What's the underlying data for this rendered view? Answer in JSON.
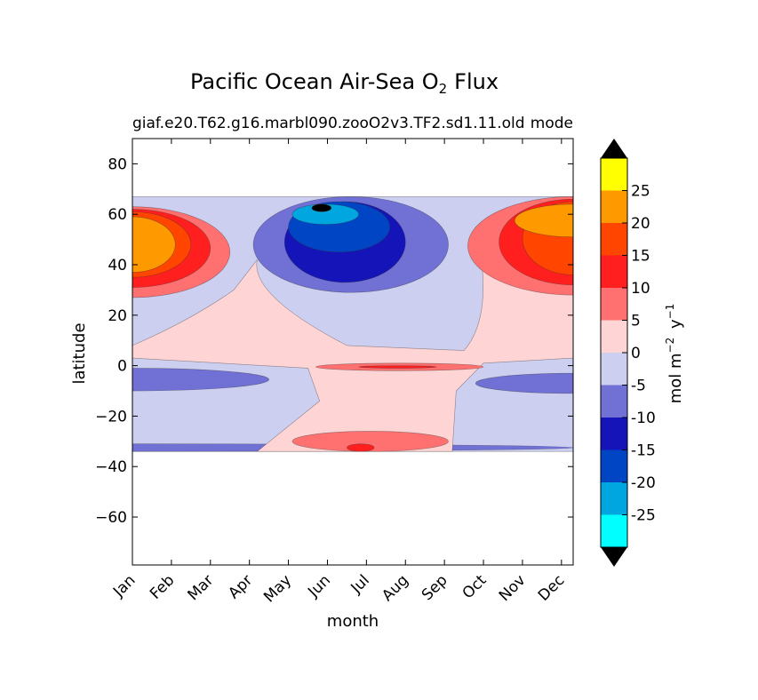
{
  "chart_data": {
    "type": "contourf",
    "title": "Pacific Ocean Air-Sea O",
    "title_subscript": "2",
    "title_suffix": "Flux",
    "subtitle_left": "giaf.e20.T62.g16.marbl090.zooO2v3.TF2.sd1.11.old",
    "subtitle_right": "mode",
    "xlabel": "month",
    "ylabel": "latitude",
    "x_categories": [
      "Jan",
      "Feb",
      "Mar",
      "Apr",
      "May",
      "Jun",
      "Jul",
      "Aug",
      "Sep",
      "Oct",
      "Nov",
      "Dec"
    ],
    "xlim": [
      0,
      11.3
    ],
    "ylim": [
      -79,
      90
    ],
    "y_ticks": [
      "80",
      "60",
      "40",
      "20",
      "0",
      "−20",
      "−40",
      "−60"
    ],
    "y_tick_values": [
      80,
      60,
      40,
      20,
      0,
      -20,
      -40,
      -60
    ],
    "data_lat_range": [
      -34,
      67
    ],
    "colorbar": {
      "label_base": "mol m",
      "label_exp1": "−2",
      "label_mid": " y",
      "label_exp2": "−1",
      "levels": [
        -30,
        -25,
        -20,
        -15,
        -10,
        -5,
        0,
        5,
        10,
        15,
        20,
        25,
        30
      ],
      "tick_labels": [
        "-25",
        "-20",
        "-15",
        "-10",
        "-5",
        "0",
        "5",
        "10",
        "15",
        "20",
        "25"
      ],
      "tick_values": [
        -25,
        -20,
        -15,
        -10,
        -5,
        0,
        5,
        10,
        15,
        20,
        25
      ],
      "colors": [
        "#00ffff",
        "#00a6e0",
        "#0045c4",
        "#1414b8",
        "#7070d5",
        "#cccff0",
        "#ffd4d4",
        "#ff7070",
        "#ff1f1f",
        "#ff4500",
        "#ff9900",
        "#ffff00"
      ],
      "extend_colors": [
        "#000000",
        "#000000"
      ]
    },
    "regions": [
      {
        "name": "neg5-background",
        "level": -5,
        "x": [
          0,
          11.3
        ],
        "lat": [
          -34,
          67
        ]
      },
      {
        "name": "south-neg10-band",
        "level": -10,
        "x": [
          0,
          11.3
        ],
        "lat": [
          -34,
          -31
        ]
      },
      {
        "name": "eq-neg10-west",
        "level": -10,
        "x": [
          0,
          3.5
        ],
        "lat": [
          -10,
          -1
        ]
      },
      {
        "name": "eq-neg10-east",
        "level": -10,
        "x": [
          8.8,
          11.3
        ],
        "lat": [
          -11,
          -3
        ]
      },
      {
        "name": "pos0-tropics",
        "level": 0,
        "x": [
          0,
          11.3
        ],
        "lat": [
          -34,
          67
        ]
      },
      {
        "name": "north-neg10",
        "level": -10,
        "x": [
          3.1,
          8.1
        ],
        "lat": [
          29,
          67
        ]
      },
      {
        "name": "north-neg15",
        "level": -15,
        "x": [
          3.9,
          7.0
        ],
        "lat": [
          33,
          65
        ]
      },
      {
        "name": "north-neg20",
        "level": -20,
        "x": [
          4.0,
          6.6
        ],
        "lat": [
          45,
          65
        ]
      },
      {
        "name": "north-neg25",
        "level": -25,
        "x": [
          4.1,
          5.8
        ],
        "lat": [
          56,
          64
        ]
      },
      {
        "name": "north-min",
        "level": -30,
        "x": [
          4.6,
          5.1
        ],
        "lat": [
          61,
          64
        ]
      },
      {
        "name": "jan-pos5",
        "level": 5,
        "x": [
          0,
          2.5
        ],
        "lat": [
          27,
          63
        ]
      },
      {
        "name": "jan-pos10",
        "level": 10,
        "x": [
          0,
          2.0
        ],
        "lat": [
          31,
          62
        ]
      },
      {
        "name": "jan-pos15",
        "level": 15,
        "x": [
          0,
          1.5
        ],
        "lat": [
          35,
          61
        ]
      },
      {
        "name": "jan-pos20",
        "level": 20,
        "x": [
          0,
          1.1
        ],
        "lat": [
          37,
          59
        ]
      },
      {
        "name": "dec-pos5",
        "level": 5,
        "x": [
          8.6,
          11.3
        ],
        "lat": [
          28,
          67
        ]
      },
      {
        "name": "dec-pos10",
        "level": 10,
        "x": [
          9.4,
          11.3
        ],
        "lat": [
          32,
          66
        ]
      },
      {
        "name": "dec-pos15",
        "level": 15,
        "x": [
          10.0,
          11.3
        ],
        "lat": [
          36,
          65
        ]
      },
      {
        "name": "dec-pos20",
        "level": 20,
        "x": [
          9.8,
          11.3
        ],
        "lat": [
          51,
          64
        ]
      },
      {
        "name": "eq-pos5",
        "level": 5,
        "x": [
          4.7,
          9.0
        ],
        "lat": [
          -2,
          1
        ]
      },
      {
        "name": "eq-pos10",
        "level": 10,
        "x": [
          5.8,
          7.8
        ],
        "lat": [
          -1,
          0
        ]
      },
      {
        "name": "south-pos5",
        "level": 5,
        "x": [
          4.1,
          8.1
        ],
        "lat": [
          -34,
          -26
        ]
      },
      {
        "name": "south-pos10",
        "level": 10,
        "x": [
          5.5,
          6.2
        ],
        "lat": [
          -34,
          -31
        ]
      }
    ]
  }
}
